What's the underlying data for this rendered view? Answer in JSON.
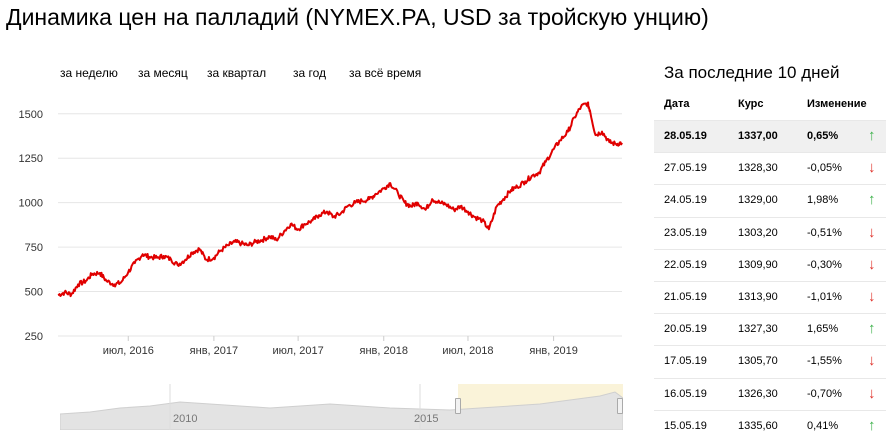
{
  "title": "Динамика цен на палладий (NYMEX.PA, USD за тройскую унцию)",
  "range_tabs": [
    "за неделю",
    "за месяц",
    "за квартал",
    "за год",
    "за всё время"
  ],
  "chart_data": {
    "type": "line",
    "title": "Динамика цен на палладий (NYMEX.PA, USD за тройскую унцию)",
    "xlabel": "",
    "ylabel": "",
    "y_ticks": [
      250,
      500,
      750,
      1000,
      1250,
      1500
    ],
    "x_tick_labels": [
      "июл, 2016",
      "янв, 2017",
      "июл, 2017",
      "янв, 2018",
      "июл, 2018",
      "янв, 2019"
    ],
    "ylim": [
      250,
      1600
    ],
    "x_range": [
      "2016-02-01",
      "2019-05-28"
    ],
    "grid": true,
    "series_color": "#e00000",
    "series": [
      {
        "name": "",
        "points": [
          [
            "2016-02-01",
            480
          ],
          [
            "2016-02-15",
            495
          ],
          [
            "2016-03-01",
            485
          ],
          [
            "2016-03-15",
            540
          ],
          [
            "2016-04-01",
            560
          ],
          [
            "2016-04-15",
            600
          ],
          [
            "2016-05-01",
            605
          ],
          [
            "2016-05-15",
            560
          ],
          [
            "2016-06-01",
            540
          ],
          [
            "2016-06-15",
            550
          ],
          [
            "2016-07-01",
            610
          ],
          [
            "2016-07-15",
            660
          ],
          [
            "2016-08-01",
            710
          ],
          [
            "2016-08-15",
            695
          ],
          [
            "2016-09-01",
            690
          ],
          [
            "2016-09-15",
            700
          ],
          [
            "2016-10-01",
            680
          ],
          [
            "2016-10-15",
            650
          ],
          [
            "2016-11-01",
            680
          ],
          [
            "2016-11-15",
            720
          ],
          [
            "2016-12-01",
            740
          ],
          [
            "2016-12-15",
            680
          ],
          [
            "2017-01-01",
            690
          ],
          [
            "2017-01-15",
            730
          ],
          [
            "2017-02-01",
            760
          ],
          [
            "2017-02-15",
            780
          ],
          [
            "2017-03-01",
            770
          ],
          [
            "2017-03-15",
            760
          ],
          [
            "2017-04-01",
            780
          ],
          [
            "2017-04-15",
            790
          ],
          [
            "2017-05-01",
            810
          ],
          [
            "2017-05-15",
            790
          ],
          [
            "2017-06-01",
            840
          ],
          [
            "2017-06-15",
            880
          ],
          [
            "2017-07-01",
            850
          ],
          [
            "2017-07-15",
            880
          ],
          [
            "2017-08-01",
            900
          ],
          [
            "2017-08-15",
            930
          ],
          [
            "2017-09-01",
            950
          ],
          [
            "2017-09-15",
            920
          ],
          [
            "2017-10-01",
            940
          ],
          [
            "2017-10-15",
            980
          ],
          [
            "2017-11-01",
            1000
          ],
          [
            "2017-11-15",
            1010
          ],
          [
            "2017-12-01",
            1020
          ],
          [
            "2017-12-15",
            1050
          ],
          [
            "2018-01-01",
            1080
          ],
          [
            "2018-01-15",
            1110
          ],
          [
            "2018-02-01",
            1050
          ],
          [
            "2018-02-15",
            1000
          ],
          [
            "2018-03-01",
            980
          ],
          [
            "2018-03-15",
            1000
          ],
          [
            "2018-04-01",
            960
          ],
          [
            "2018-04-15",
            1020
          ],
          [
            "2018-05-01",
            1000
          ],
          [
            "2018-05-15",
            990
          ],
          [
            "2018-06-01",
            960
          ],
          [
            "2018-06-15",
            980
          ],
          [
            "2018-07-01",
            950
          ],
          [
            "2018-07-15",
            920
          ],
          [
            "2018-08-01",
            900
          ],
          [
            "2018-08-15",
            850
          ],
          [
            "2018-09-01",
            980
          ],
          [
            "2018-09-15",
            1020
          ],
          [
            "2018-10-01",
            1070
          ],
          [
            "2018-10-15",
            1090
          ],
          [
            "2018-11-01",
            1120
          ],
          [
            "2018-11-15",
            1150
          ],
          [
            "2018-12-01",
            1170
          ],
          [
            "2018-12-15",
            1230
          ],
          [
            "2019-01-01",
            1300
          ],
          [
            "2019-01-15",
            1350
          ],
          [
            "2019-02-01",
            1400
          ],
          [
            "2019-02-15",
            1480
          ],
          [
            "2019-03-01",
            1540
          ],
          [
            "2019-03-15",
            1560
          ],
          [
            "2019-03-20",
            1520
          ],
          [
            "2019-04-01",
            1380
          ],
          [
            "2019-04-15",
            1400
          ],
          [
            "2019-05-01",
            1340
          ],
          [
            "2019-05-15",
            1330
          ],
          [
            "2019-05-28",
            1337
          ]
        ]
      }
    ]
  },
  "navigator": {
    "labels": [
      "2010",
      "2015"
    ]
  },
  "table": {
    "title": "За последние 10 дней",
    "headers": {
      "date": "Дата",
      "price": "Курс",
      "change": "Изменение"
    },
    "rows": [
      {
        "date": "28.05.19",
        "price": "1337,00",
        "change": "0,65%",
        "arrow": "↑",
        "dir": "up"
      },
      {
        "date": "27.05.19",
        "price": "1328,30",
        "change": "-0,05%",
        "arrow": "↓",
        "dir": "down"
      },
      {
        "date": "24.05.19",
        "price": "1329,00",
        "change": "1,98%",
        "arrow": "↑",
        "dir": "up"
      },
      {
        "date": "23.05.19",
        "price": "1303,20",
        "change": "-0,51%",
        "arrow": "↓",
        "dir": "down"
      },
      {
        "date": "22.05.19",
        "price": "1309,90",
        "change": "-0,30%",
        "arrow": "↓",
        "dir": "down"
      },
      {
        "date": "21.05.19",
        "price": "1313,90",
        "change": "-1,01%",
        "arrow": "↓",
        "dir": "down"
      },
      {
        "date": "20.05.19",
        "price": "1327,30",
        "change": "1,65%",
        "arrow": "↑",
        "dir": "up"
      },
      {
        "date": "17.05.19",
        "price": "1305,70",
        "change": "-1,55%",
        "arrow": "↓",
        "dir": "down"
      },
      {
        "date": "16.05.19",
        "price": "1326,30",
        "change": "-0,70%",
        "arrow": "↓",
        "dir": "down"
      },
      {
        "date": "15.05.19",
        "price": "1335,60",
        "change": "0,41%",
        "arrow": "↑",
        "dir": "up"
      }
    ]
  }
}
